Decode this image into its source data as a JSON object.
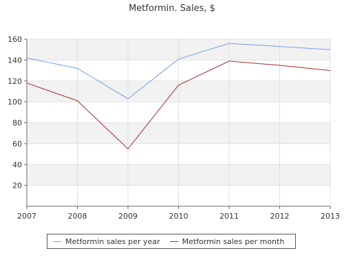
{
  "chart_data": {
    "type": "line",
    "title": "Metformin. Sales, $",
    "xlabel": "",
    "ylabel": "",
    "x": [
      "2007",
      "2008",
      "2009",
      "2010",
      "2011",
      "2012",
      "2013"
    ],
    "ylim": [
      0,
      160
    ],
    "yticks": [
      20,
      40,
      60,
      80,
      100,
      120,
      140,
      160
    ],
    "grid": true,
    "legend_position": "bottom",
    "series": [
      {
        "name": "Metformin sales per year",
        "color": "#6fa0e8",
        "values": [
          142,
          132,
          103,
          141,
          156,
          153,
          150
        ]
      },
      {
        "name": "Metformin sales per month",
        "color": "#a52a2a",
        "values": [
          118,
          101,
          55,
          116,
          139,
          135,
          130
        ]
      }
    ]
  }
}
